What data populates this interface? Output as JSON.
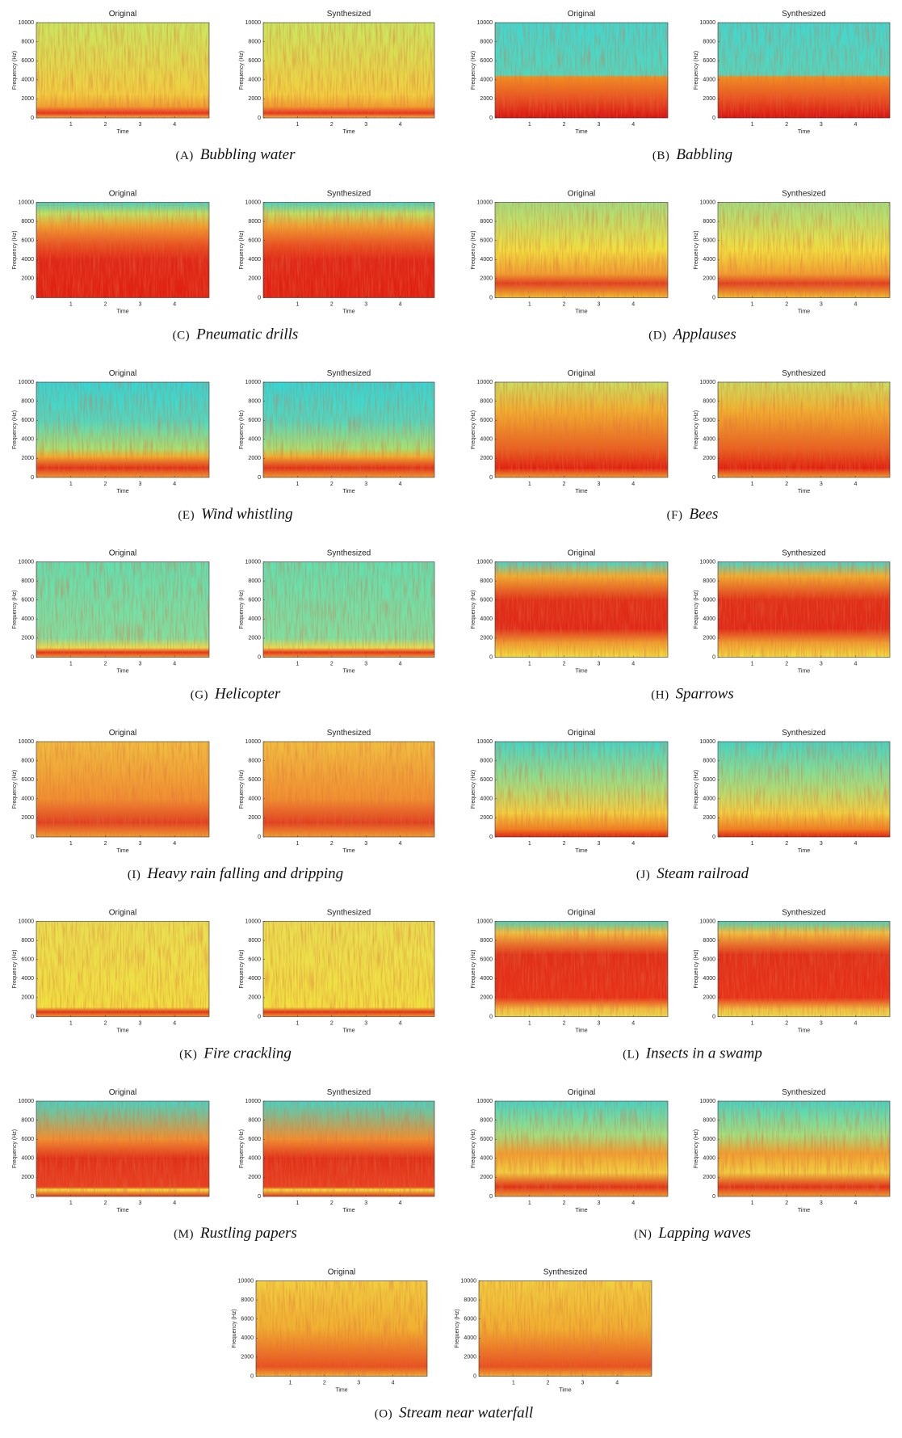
{
  "figure": {
    "plot_titles": [
      "Original",
      "Synthesized"
    ],
    "axes": {
      "y_label": "Frequency (Hz)",
      "x_label": "Time",
      "yticks": [
        0,
        2000,
        4000,
        6000,
        8000,
        10000
      ],
      "xticks": [
        1,
        2,
        3,
        4
      ],
      "xlim": [
        0,
        5
      ]
    },
    "panels": [
      {
        "label": "(A)",
        "name": "Bubbling water"
      },
      {
        "label": "(B)",
        "name": "Babbling"
      },
      {
        "label": "(C)",
        "name": "Pneumatic drills"
      },
      {
        "label": "(D)",
        "name": "Applauses"
      },
      {
        "label": "(E)",
        "name": "Wind whistling"
      },
      {
        "label": "(F)",
        "name": "Bees"
      },
      {
        "label": "(G)",
        "name": "Helicopter"
      },
      {
        "label": "(H)",
        "name": "Sparrows"
      },
      {
        "label": "(I)",
        "name": "Heavy rain falling and dripping"
      },
      {
        "label": "(J)",
        "name": "Steam railroad"
      },
      {
        "label": "(K)",
        "name": "Fire crackling"
      },
      {
        "label": "(L)",
        "name": "Insects in a swamp"
      },
      {
        "label": "(M)",
        "name": "Rustling papers"
      },
      {
        "label": "(N)",
        "name": "Lapping waves"
      },
      {
        "label": "(O)",
        "name": "Stream near waterfall"
      }
    ]
  }
}
